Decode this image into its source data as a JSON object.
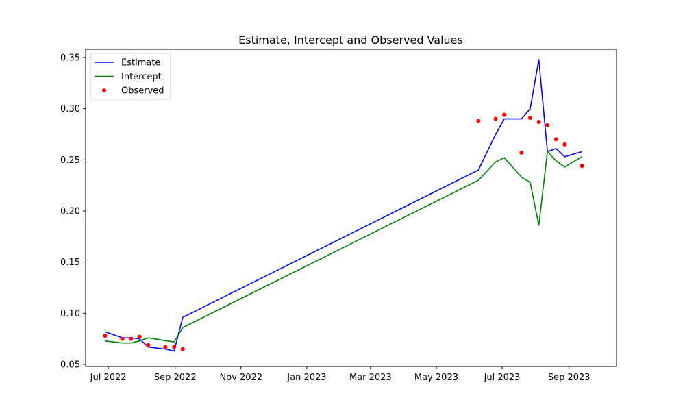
{
  "chart_data": {
    "type": "line",
    "title": "Estimate, Intercept and  Observed Values",
    "xlabel": "",
    "ylabel": "",
    "xlim": [
      "2022-06-10",
      "2023-10-15"
    ],
    "ylim": [
      0.048,
      0.358
    ],
    "x_ticks": [
      {
        "date": "2022-07-01",
        "label": "Jul 2022"
      },
      {
        "date": "2022-09-01",
        "label": "Sep 2022"
      },
      {
        "date": "2022-11-01",
        "label": "Nov 2022"
      },
      {
        "date": "2023-01-01",
        "label": "Jan 2023"
      },
      {
        "date": "2023-03-01",
        "label": "Mar 2023"
      },
      {
        "date": "2023-05-01",
        "label": "May 2023"
      },
      {
        "date": "2023-07-01",
        "label": "Jul 2023"
      },
      {
        "date": "2023-09-01",
        "label": "Sep 2023"
      }
    ],
    "y_ticks": [
      {
        "value": 0.05,
        "label": "0.05"
      },
      {
        "value": 0.1,
        "label": "0.10"
      },
      {
        "value": 0.15,
        "label": "0.15"
      },
      {
        "value": 0.2,
        "label": "0.20"
      },
      {
        "value": 0.25,
        "label": "0.25"
      },
      {
        "value": 0.3,
        "label": "0.30"
      },
      {
        "value": 0.35,
        "label": "0.35"
      }
    ],
    "legend_position": "top-left",
    "grid": false,
    "series": [
      {
        "name": "Estimate",
        "type": "line",
        "color": "#0000ff",
        "points": [
          {
            "x": "2022-06-28",
            "y": 0.082
          },
          {
            "x": "2022-07-14",
            "y": 0.076
          },
          {
            "x": "2022-07-22",
            "y": 0.076
          },
          {
            "x": "2022-07-30",
            "y": 0.075
          },
          {
            "x": "2022-08-07",
            "y": 0.067
          },
          {
            "x": "2022-08-23",
            "y": 0.065
          },
          {
            "x": "2022-08-31",
            "y": 0.063
          },
          {
            "x": "2022-09-08",
            "y": 0.096
          },
          {
            "x": "2023-06-09",
            "y": 0.24
          },
          {
            "x": "2023-06-25",
            "y": 0.275
          },
          {
            "x": "2023-07-03",
            "y": 0.29
          },
          {
            "x": "2023-07-19",
            "y": 0.29
          },
          {
            "x": "2023-07-27",
            "y": 0.3
          },
          {
            "x": "2023-08-04",
            "y": 0.348
          },
          {
            "x": "2023-08-12",
            "y": 0.258
          },
          {
            "x": "2023-08-20",
            "y": 0.261
          },
          {
            "x": "2023-08-28",
            "y": 0.253
          },
          {
            "x": "2023-09-13",
            "y": 0.258
          }
        ]
      },
      {
        "name": "Intercept",
        "type": "line",
        "color": "#008000",
        "points": [
          {
            "x": "2022-06-28",
            "y": 0.073
          },
          {
            "x": "2022-07-14",
            "y": 0.071
          },
          {
            "x": "2022-07-22",
            "y": 0.071
          },
          {
            "x": "2022-07-30",
            "y": 0.073
          },
          {
            "x": "2022-08-07",
            "y": 0.076
          },
          {
            "x": "2022-08-31",
            "y": 0.072
          },
          {
            "x": "2022-09-08",
            "y": 0.086
          },
          {
            "x": "2023-06-09",
            "y": 0.23
          },
          {
            "x": "2023-06-25",
            "y": 0.248
          },
          {
            "x": "2023-07-03",
            "y": 0.252
          },
          {
            "x": "2023-07-19",
            "y": 0.233
          },
          {
            "x": "2023-07-27",
            "y": 0.228
          },
          {
            "x": "2023-08-04",
            "y": 0.186
          },
          {
            "x": "2023-08-12",
            "y": 0.258
          },
          {
            "x": "2023-08-20",
            "y": 0.249
          },
          {
            "x": "2023-08-28",
            "y": 0.243
          },
          {
            "x": "2023-09-13",
            "y": 0.253
          }
        ]
      },
      {
        "name": "Observed",
        "type": "scatter",
        "color": "#ff0000",
        "points": [
          {
            "x": "2022-06-28",
            "y": 0.078
          },
          {
            "x": "2022-07-14",
            "y": 0.075
          },
          {
            "x": "2022-07-22",
            "y": 0.075
          },
          {
            "x": "2022-07-30",
            "y": 0.077
          },
          {
            "x": "2022-08-07",
            "y": 0.069
          },
          {
            "x": "2022-08-23",
            "y": 0.067
          },
          {
            "x": "2022-08-31",
            "y": 0.067
          },
          {
            "x": "2022-09-08",
            "y": 0.065
          },
          {
            "x": "2023-06-09",
            "y": 0.288
          },
          {
            "x": "2023-06-25",
            "y": 0.29
          },
          {
            "x": "2023-07-03",
            "y": 0.294
          },
          {
            "x": "2023-07-19",
            "y": 0.257
          },
          {
            "x": "2023-07-27",
            "y": 0.291
          },
          {
            "x": "2023-08-04",
            "y": 0.287
          },
          {
            "x": "2023-08-12",
            "y": 0.284
          },
          {
            "x": "2023-08-20",
            "y": 0.27
          },
          {
            "x": "2023-08-28",
            "y": 0.265
          },
          {
            "x": "2023-09-13",
            "y": 0.244
          }
        ]
      }
    ]
  }
}
